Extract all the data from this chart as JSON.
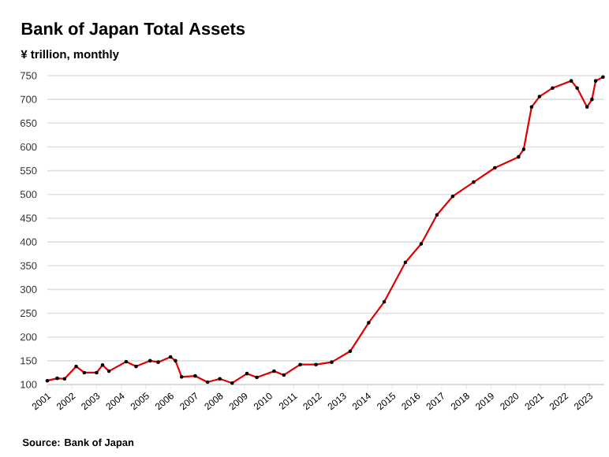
{
  "chart_data": {
    "type": "line",
    "title": "Bank of Japan Total Assets",
    "subtitle": "¥ trillion, monthly",
    "annotations": [
      "Source: Bank of Japan"
    ],
    "x": [
      2001.0,
      2001.4,
      2001.7,
      2002.17,
      2002.5,
      2003.0,
      2003.24,
      2003.5,
      2004.2,
      2004.6,
      2005.17,
      2005.5,
      2006.0,
      2006.2,
      2006.45,
      2007.0,
      2007.5,
      2008.0,
      2008.5,
      2009.1,
      2009.5,
      2010.2,
      2010.6,
      2011.26,
      2011.9,
      2012.54,
      2013.29,
      2014.04,
      2014.67,
      2015.53,
      2016.17,
      2016.81,
      2017.45,
      2018.3,
      2019.16,
      2020.12,
      2020.33,
      2020.65,
      2020.97,
      2021.5,
      2022.26,
      2022.5,
      2022.9,
      2023.1,
      2023.25,
      2023.55
    ],
    "series": [
      {
        "color": "#e00000",
        "values": [
          108,
          113,
          112,
          138,
          125,
          125,
          141,
          128,
          148,
          138,
          150,
          147,
          158,
          150,
          116,
          118,
          105,
          112,
          103,
          123,
          115,
          128,
          120,
          142,
          142,
          147,
          170,
          230,
          274,
          357,
          396,
          457,
          496,
          526,
          556,
          579,
          595,
          684,
          706,
          724,
          739,
          724,
          684,
          700,
          739,
          747
        ]
      }
    ],
    "xlim": [
      2001,
      2023.6
    ],
    "ylim": [
      100,
      750
    ],
    "xticks": [
      2001,
      2002,
      2003,
      2004,
      2005,
      2006,
      2007,
      2008,
      2009,
      2010,
      2011,
      2012,
      2013,
      2014,
      2015,
      2016,
      2017,
      2018,
      2019,
      2020,
      2021,
      2022,
      2023
    ],
    "yticks": [
      100,
      150,
      200,
      250,
      300,
      350,
      400,
      450,
      500,
      550,
      600,
      650,
      700,
      750
    ],
    "grid": "y",
    "marker": "circle",
    "line_style": "solid"
  }
}
